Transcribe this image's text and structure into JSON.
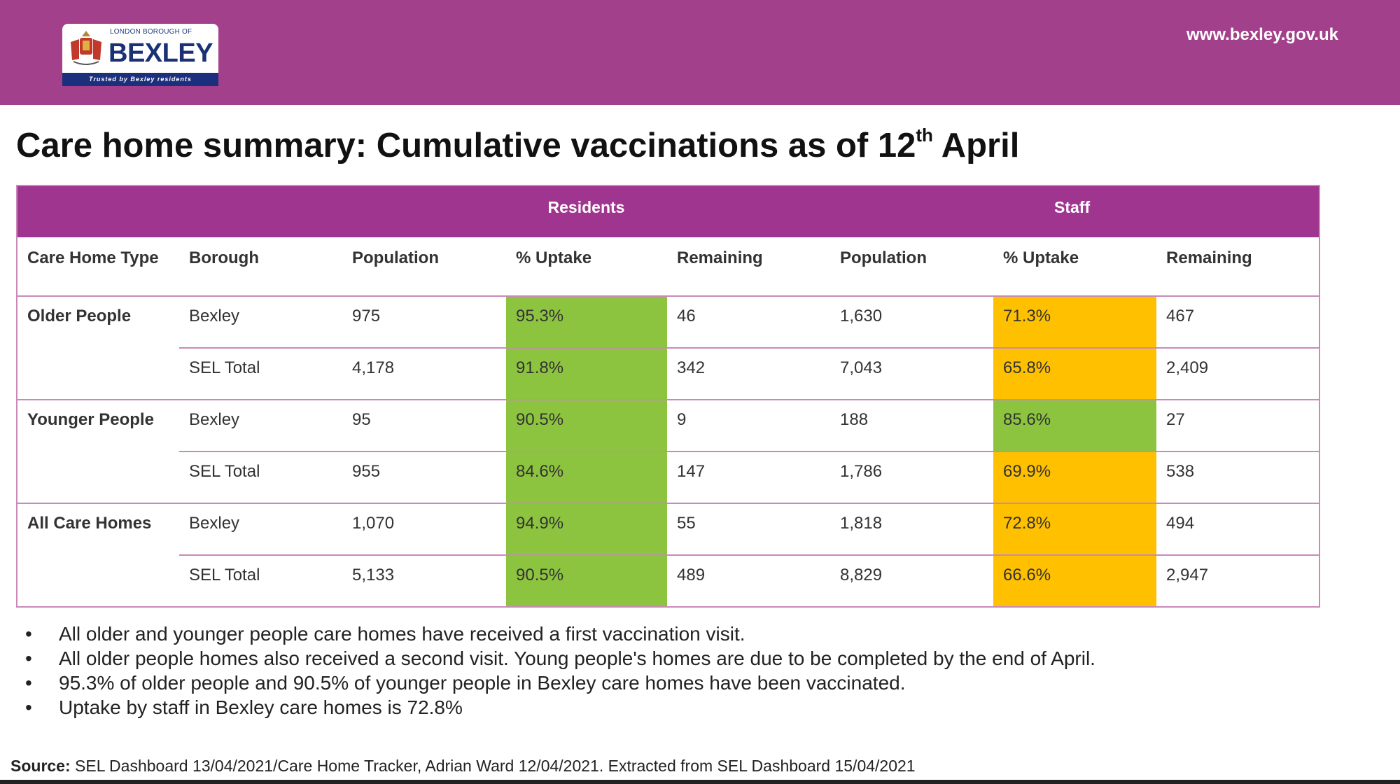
{
  "header": {
    "logo": {
      "line1": "LONDON BOROUGH OF",
      "name": "BEXLEY",
      "tagline": "Trusted by Bexley residents"
    },
    "url": "www.bexley.gov.uk",
    "background": "#a3408c"
  },
  "title": {
    "main": "Care home summary:  Cumulative vaccinations as of 12",
    "sup": "th",
    "suffix": " April"
  },
  "table": {
    "groups": {
      "residents": "Residents",
      "staff": "Staff"
    },
    "columns": [
      "Care Home Type",
      "Borough",
      "Population",
      "% Uptake",
      "Remaining",
      "Population",
      "% Uptake",
      "Remaining"
    ],
    "colors": {
      "green": "#8dc43f",
      "amber": "#ffc000",
      "header": "#a0358f"
    },
    "groups_rows": [
      {
        "type": "Older People",
        "rows": [
          {
            "borough": "Bexley",
            "res_pop": "975",
            "res_uptake": "95.3%",
            "res_uptake_status": "green",
            "res_remaining": "46",
            "staff_pop": "1,630",
            "staff_uptake": "71.3%",
            "staff_uptake_status": "amber",
            "staff_remaining": "467"
          },
          {
            "borough": "SEL Total",
            "res_pop": "4,178",
            "res_uptake": "91.8%",
            "res_uptake_status": "green",
            "res_remaining": "342",
            "staff_pop": "7,043",
            "staff_uptake": "65.8%",
            "staff_uptake_status": "amber",
            "staff_remaining": "2,409"
          }
        ]
      },
      {
        "type": "Younger People",
        "rows": [
          {
            "borough": "Bexley",
            "res_pop": "95",
            "res_uptake": "90.5%",
            "res_uptake_status": "green",
            "res_remaining": "9",
            "staff_pop": "188",
            "staff_uptake": "85.6%",
            "staff_uptake_status": "green",
            "staff_remaining": "27"
          },
          {
            "borough": "SEL Total",
            "res_pop": "955",
            "res_uptake": "84.6%",
            "res_uptake_status": "green",
            "res_remaining": "147",
            "staff_pop": "1,786",
            "staff_uptake": "69.9%",
            "staff_uptake_status": "amber",
            "staff_remaining": "538"
          }
        ]
      },
      {
        "type": "All Care Homes",
        "rows": [
          {
            "borough": "Bexley",
            "res_pop": "1,070",
            "res_uptake": "94.9%",
            "res_uptake_status": "green",
            "res_remaining": "55",
            "staff_pop": "1,818",
            "staff_uptake": "72.8%",
            "staff_uptake_status": "amber",
            "staff_remaining": "494"
          },
          {
            "borough": "SEL Total",
            "res_pop": "5,133",
            "res_uptake": "90.5%",
            "res_uptake_status": "green",
            "res_remaining": "489",
            "staff_pop": "8,829",
            "staff_uptake": "66.6%",
            "staff_uptake_status": "amber",
            "staff_remaining": "2,947"
          }
        ]
      }
    ]
  },
  "bullets": [
    "All older and younger people care homes have received a first vaccination visit.",
    "All older people homes also received a second visit. Young people's homes are due to be completed by the end of April.",
    "95.3% of older people and 90.5% of younger people in Bexley care homes have been vaccinated.",
    "Uptake by staff in Bexley care homes is 72.8%"
  ],
  "bullet_char": "•",
  "source": {
    "label": "Source:",
    "text": " SEL Dashboard 13/04/2021/Care Home Tracker, Adrian Ward 12/04/2021. Extracted from SEL Dashboard 15/04/2021"
  }
}
